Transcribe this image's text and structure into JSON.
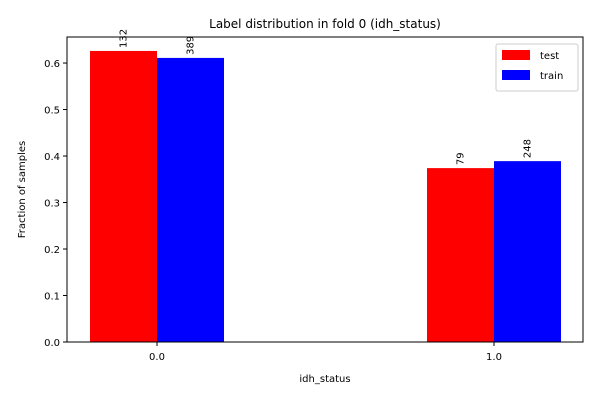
{
  "chart_data": {
    "type": "bar",
    "title": "Label distribution in fold 0 (idh_status)",
    "xlabel": "idh_status",
    "ylabel": "Fraction of samples",
    "categories": [
      "0.0",
      "1.0"
    ],
    "ylim": [
      0,
      0.656
    ],
    "yticks": [
      "0.0",
      "0.1",
      "0.2",
      "0.3",
      "0.4",
      "0.5",
      "0.6"
    ],
    "grid": false,
    "legend_position": "top-right",
    "series": [
      {
        "name": "test",
        "color": "#ff0000",
        "values": [
          0.626,
          0.374
        ],
        "labels": [
          "132",
          "79"
        ]
      },
      {
        "name": "train",
        "color": "#0000ff",
        "values": [
          0.611,
          0.389
        ],
        "labels": [
          "389",
          "248"
        ]
      }
    ]
  }
}
